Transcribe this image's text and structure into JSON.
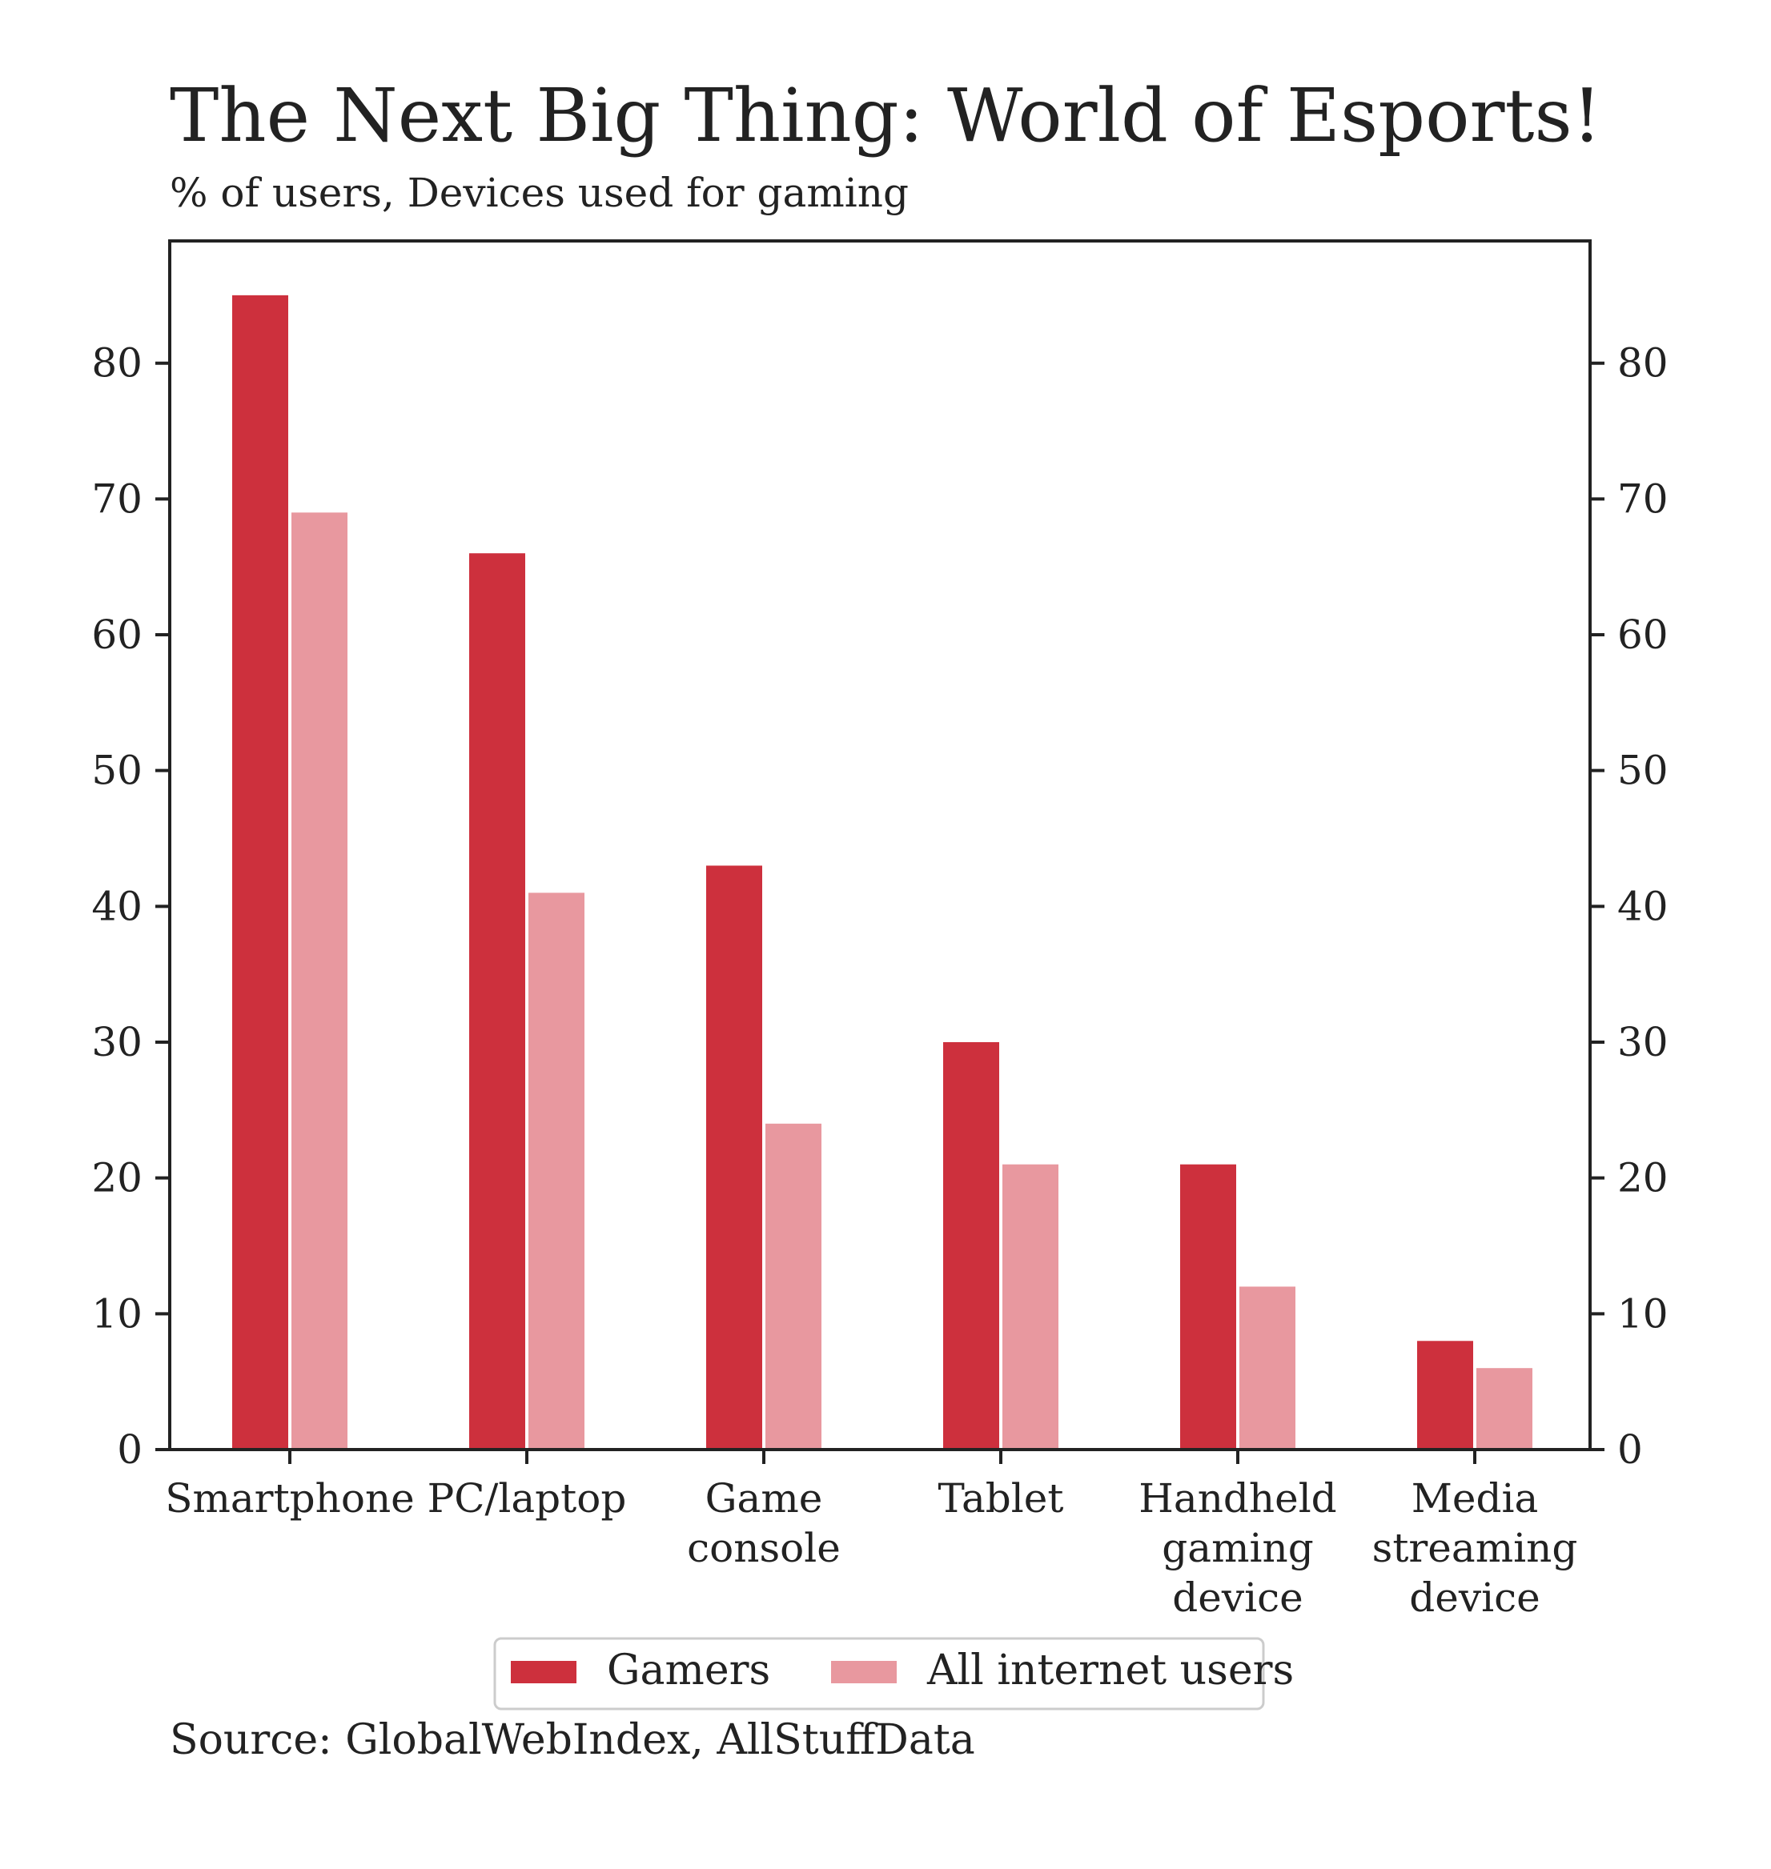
{
  "title": "The Next Big Thing: World of Esports!",
  "subtitle": "% of users, Devices used for gaming",
  "source": "Source: GlobalWebIndex, AllStuffData",
  "colors": {
    "gamers": "#cd303d",
    "all_users": "#e8989f",
    "axis": "#222222"
  },
  "chart_data": {
    "type": "bar",
    "categories": [
      [
        "Smartphone"
      ],
      [
        "PC/laptop"
      ],
      [
        "Game",
        "console"
      ],
      [
        "Tablet"
      ],
      [
        "Handheld",
        "gaming",
        "device"
      ],
      [
        "Media",
        "streaming",
        "device"
      ]
    ],
    "series": [
      {
        "name": "Gamers",
        "values": [
          85,
          66,
          43,
          30,
          21,
          8
        ]
      },
      {
        "name": "All internet users",
        "values": [
          69,
          41,
          24,
          21,
          12,
          6
        ]
      }
    ],
    "ylim": [
      0,
      89
    ],
    "yticks": [
      0,
      10,
      20,
      30,
      40,
      50,
      60,
      70,
      80
    ],
    "mirror_y_axis": true,
    "grid": false,
    "legend_position": "bottom-center"
  }
}
